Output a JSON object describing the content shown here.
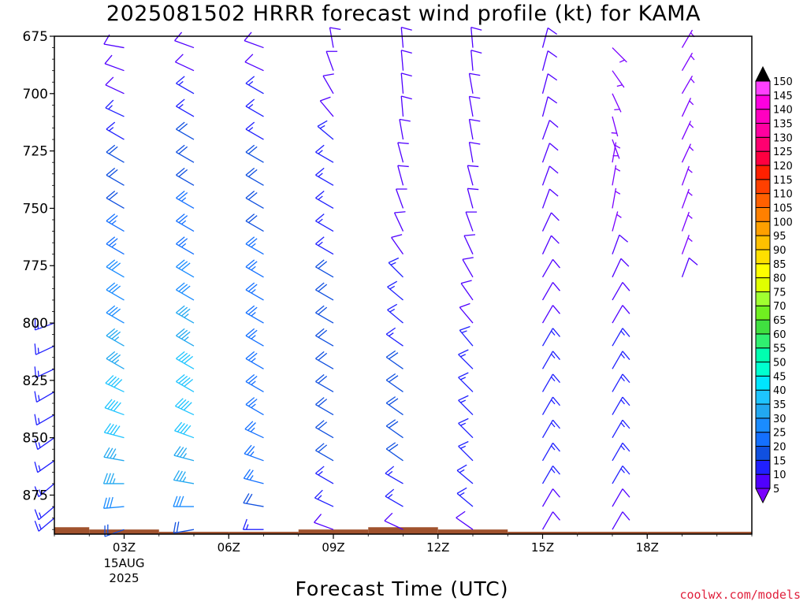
{
  "title": "2025081502 HRRR forecast wind profile (kt) for KAMA",
  "xlabel": "Forecast Time (UTC)",
  "credit": "coolwx.com/models",
  "chart_data": {
    "type": "wind_barb_profile",
    "y_axis": {
      "label": "",
      "unit": "hPa",
      "range": [
        675,
        892
      ],
      "ticks": [
        675,
        700,
        725,
        750,
        775,
        800,
        825,
        850,
        875
      ]
    },
    "x_axis": {
      "unit": "forecast hour",
      "range": [
        1,
        21
      ],
      "ticks": [
        {
          "hour": 3,
          "label": "03Z",
          "date_label": "15AUG",
          "year_label": "2025"
        },
        {
          "hour": 6,
          "label": "06Z"
        },
        {
          "hour": 9,
          "label": "09Z"
        },
        {
          "hour": 12,
          "label": "12Z"
        },
        {
          "hour": 15,
          "label": "15Z"
        },
        {
          "hour": 18,
          "label": "18Z"
        }
      ]
    },
    "levels_hpa": [
      680,
      690,
      700,
      710,
      720,
      730,
      740,
      750,
      760,
      770,
      780,
      790,
      800,
      810,
      820,
      830,
      840,
      850,
      860,
      870,
      880,
      890
    ],
    "columns": [
      {
        "hour": 1,
        "surface_hpa": 889,
        "profile": [
          [
            800,
            250,
            15
          ],
          [
            810,
            245,
            15
          ],
          [
            820,
            245,
            15
          ],
          [
            830,
            240,
            15
          ],
          [
            840,
            240,
            15
          ],
          [
            850,
            235,
            15
          ],
          [
            860,
            235,
            15
          ],
          [
            870,
            230,
            15
          ],
          [
            880,
            230,
            15
          ],
          [
            885,
            230,
            15
          ]
        ]
      },
      {
        "hour": 3,
        "surface_hpa": 890,
        "profile": [
          [
            680,
            280,
            10
          ],
          [
            690,
            290,
            10
          ],
          [
            700,
            295,
            10
          ],
          [
            710,
            295,
            15
          ],
          [
            720,
            300,
            15
          ],
          [
            730,
            300,
            20
          ],
          [
            740,
            300,
            20
          ],
          [
            750,
            300,
            20
          ],
          [
            760,
            300,
            25
          ],
          [
            770,
            300,
            25
          ],
          [
            780,
            300,
            30
          ],
          [
            790,
            300,
            30
          ],
          [
            800,
            300,
            30
          ],
          [
            810,
            300,
            35
          ],
          [
            820,
            300,
            35
          ],
          [
            830,
            295,
            40
          ],
          [
            840,
            290,
            40
          ],
          [
            850,
            285,
            40
          ],
          [
            860,
            280,
            35
          ],
          [
            870,
            270,
            35
          ],
          [
            880,
            265,
            30
          ],
          [
            890,
            250,
            20
          ]
        ]
      },
      {
        "hour": 5,
        "surface_hpa": 891,
        "profile": [
          [
            680,
            290,
            10
          ],
          [
            690,
            295,
            10
          ],
          [
            700,
            300,
            15
          ],
          [
            710,
            300,
            15
          ],
          [
            720,
            300,
            20
          ],
          [
            730,
            300,
            20
          ],
          [
            740,
            300,
            20
          ],
          [
            750,
            300,
            25
          ],
          [
            760,
            300,
            25
          ],
          [
            770,
            300,
            25
          ],
          [
            780,
            300,
            30
          ],
          [
            790,
            300,
            30
          ],
          [
            800,
            300,
            35
          ],
          [
            810,
            300,
            35
          ],
          [
            820,
            300,
            40
          ],
          [
            830,
            300,
            40
          ],
          [
            840,
            295,
            40
          ],
          [
            850,
            290,
            40
          ],
          [
            860,
            285,
            35
          ],
          [
            870,
            280,
            35
          ],
          [
            880,
            270,
            30
          ],
          [
            890,
            260,
            20
          ]
        ]
      },
      {
        "hour": 7,
        "surface_hpa": 891,
        "profile": [
          [
            680,
            290,
            10
          ],
          [
            690,
            295,
            10
          ],
          [
            700,
            300,
            15
          ],
          [
            710,
            300,
            15
          ],
          [
            720,
            300,
            15
          ],
          [
            730,
            300,
            20
          ],
          [
            740,
            300,
            20
          ],
          [
            750,
            300,
            20
          ],
          [
            760,
            300,
            20
          ],
          [
            770,
            300,
            25
          ],
          [
            780,
            300,
            25
          ],
          [
            790,
            300,
            25
          ],
          [
            800,
            300,
            25
          ],
          [
            810,
            300,
            25
          ],
          [
            820,
            300,
            25
          ],
          [
            830,
            300,
            25
          ],
          [
            840,
            300,
            25
          ],
          [
            850,
            295,
            25
          ],
          [
            860,
            290,
            25
          ],
          [
            870,
            285,
            25
          ],
          [
            880,
            280,
            20
          ],
          [
            890,
            270,
            15
          ]
        ]
      },
      {
        "hour": 9,
        "surface_hpa": 890,
        "profile": [
          [
            680,
            350,
            10
          ],
          [
            690,
            340,
            10
          ],
          [
            700,
            330,
            10
          ],
          [
            710,
            320,
            10
          ],
          [
            720,
            310,
            15
          ],
          [
            730,
            300,
            15
          ],
          [
            740,
            300,
            15
          ],
          [
            750,
            300,
            15
          ],
          [
            760,
            300,
            15
          ],
          [
            770,
            300,
            15
          ],
          [
            780,
            300,
            20
          ],
          [
            790,
            300,
            20
          ],
          [
            800,
            300,
            20
          ],
          [
            810,
            300,
            20
          ],
          [
            820,
            300,
            20
          ],
          [
            830,
            300,
            20
          ],
          [
            840,
            300,
            20
          ],
          [
            850,
            300,
            20
          ],
          [
            860,
            300,
            20
          ],
          [
            870,
            300,
            15
          ],
          [
            880,
            295,
            15
          ],
          [
            890,
            290,
            10
          ]
        ]
      },
      {
        "hour": 11,
        "surface_hpa": 889,
        "profile": [
          [
            680,
            355,
            10
          ],
          [
            690,
            355,
            10
          ],
          [
            700,
            355,
            10
          ],
          [
            710,
            355,
            10
          ],
          [
            720,
            350,
            10
          ],
          [
            730,
            345,
            10
          ],
          [
            740,
            345,
            10
          ],
          [
            750,
            340,
            10
          ],
          [
            760,
            335,
            10
          ],
          [
            770,
            325,
            10
          ],
          [
            780,
            315,
            15
          ],
          [
            790,
            310,
            15
          ],
          [
            800,
            310,
            15
          ],
          [
            810,
            305,
            15
          ],
          [
            820,
            305,
            20
          ],
          [
            830,
            305,
            20
          ],
          [
            840,
            305,
            20
          ],
          [
            850,
            305,
            20
          ],
          [
            860,
            305,
            20
          ],
          [
            870,
            300,
            15
          ],
          [
            880,
            300,
            15
          ],
          [
            890,
            295,
            10
          ]
        ]
      },
      {
        "hour": 13,
        "surface_hpa": 890,
        "profile": [
          [
            680,
            355,
            10
          ],
          [
            690,
            355,
            10
          ],
          [
            700,
            350,
            10
          ],
          [
            710,
            350,
            10
          ],
          [
            720,
            350,
            10
          ],
          [
            730,
            350,
            10
          ],
          [
            740,
            345,
            10
          ],
          [
            750,
            345,
            10
          ],
          [
            760,
            340,
            10
          ],
          [
            770,
            335,
            10
          ],
          [
            780,
            330,
            10
          ],
          [
            790,
            325,
            10
          ],
          [
            800,
            320,
            10
          ],
          [
            810,
            320,
            15
          ],
          [
            820,
            315,
            15
          ],
          [
            830,
            315,
            15
          ],
          [
            840,
            315,
            15
          ],
          [
            850,
            315,
            15
          ],
          [
            860,
            315,
            15
          ],
          [
            870,
            310,
            15
          ],
          [
            880,
            310,
            15
          ],
          [
            890,
            305,
            10
          ]
        ]
      },
      {
        "hour": 15,
        "surface_hpa": 891,
        "profile": [
          [
            680,
            15,
            10
          ],
          [
            690,
            15,
            10
          ],
          [
            700,
            15,
            10
          ],
          [
            710,
            15,
            10
          ],
          [
            720,
            20,
            10
          ],
          [
            730,
            20,
            10
          ],
          [
            740,
            20,
            10
          ],
          [
            750,
            20,
            10
          ],
          [
            760,
            25,
            10
          ],
          [
            770,
            25,
            10
          ],
          [
            780,
            30,
            10
          ],
          [
            790,
            30,
            10
          ],
          [
            800,
            30,
            10
          ],
          [
            810,
            30,
            15
          ],
          [
            820,
            30,
            15
          ],
          [
            830,
            30,
            15
          ],
          [
            840,
            30,
            15
          ],
          [
            850,
            30,
            15
          ],
          [
            860,
            30,
            15
          ],
          [
            870,
            30,
            15
          ],
          [
            880,
            30,
            10
          ],
          [
            890,
            30,
            10
          ]
        ]
      },
      {
        "hour": 17,
        "surface_hpa": 891,
        "profile": [
          [
            680,
            135,
            5
          ],
          [
            690,
            145,
            5
          ],
          [
            700,
            155,
            5
          ],
          [
            710,
            165,
            5
          ],
          [
            720,
            160,
            5
          ],
          [
            730,
            10,
            5
          ],
          [
            740,
            10,
            5
          ],
          [
            750,
            10,
            5
          ],
          [
            760,
            15,
            5
          ],
          [
            770,
            20,
            10
          ],
          [
            780,
            25,
            10
          ],
          [
            790,
            30,
            10
          ],
          [
            800,
            30,
            10
          ],
          [
            810,
            30,
            15
          ],
          [
            820,
            30,
            15
          ],
          [
            830,
            30,
            15
          ],
          [
            840,
            30,
            15
          ],
          [
            850,
            30,
            15
          ],
          [
            860,
            30,
            15
          ],
          [
            870,
            30,
            15
          ],
          [
            880,
            30,
            10
          ],
          [
            890,
            30,
            10
          ]
        ]
      },
      {
        "hour": 19,
        "surface_hpa": 891,
        "profile": [
          [
            680,
            30,
            5
          ],
          [
            690,
            30,
            5
          ],
          [
            700,
            30,
            5
          ],
          [
            710,
            25,
            5
          ],
          [
            720,
            25,
            5
          ],
          [
            730,
            25,
            5
          ],
          [
            740,
            20,
            5
          ],
          [
            750,
            20,
            5
          ],
          [
            760,
            20,
            5
          ],
          [
            770,
            20,
            5
          ],
          [
            780,
            20,
            10
          ]
        ]
      }
    ],
    "colorbar": {
      "unit": "kt",
      "levels": [
        5,
        10,
        15,
        20,
        25,
        30,
        35,
        40,
        45,
        50,
        55,
        60,
        65,
        70,
        75,
        80,
        85,
        90,
        95,
        100,
        105,
        110,
        115,
        120,
        125,
        130,
        135,
        140,
        145,
        150
      ],
      "colors": [
        "#7a00ff",
        "#5000ff",
        "#2020ff",
        "#1050e0",
        "#1470ff",
        "#1a8cff",
        "#22a8f0",
        "#1ec4ff",
        "#00e5ff",
        "#00ffd0",
        "#00ffb0",
        "#30f070",
        "#40e040",
        "#70f020",
        "#a0ff30",
        "#e0ff00",
        "#ffff00",
        "#ffe000",
        "#ffc000",
        "#ffa000",
        "#ff8000",
        "#ff6000",
        "#ff4000",
        "#ff2000",
        "#ff0040",
        "#ff0070",
        "#ff00a0",
        "#ff00c0",
        "#ff00e0",
        "#ff40ff"
      ],
      "top_color": "#000000"
    },
    "terrain_color": "#a0522d",
    "grid": false
  }
}
